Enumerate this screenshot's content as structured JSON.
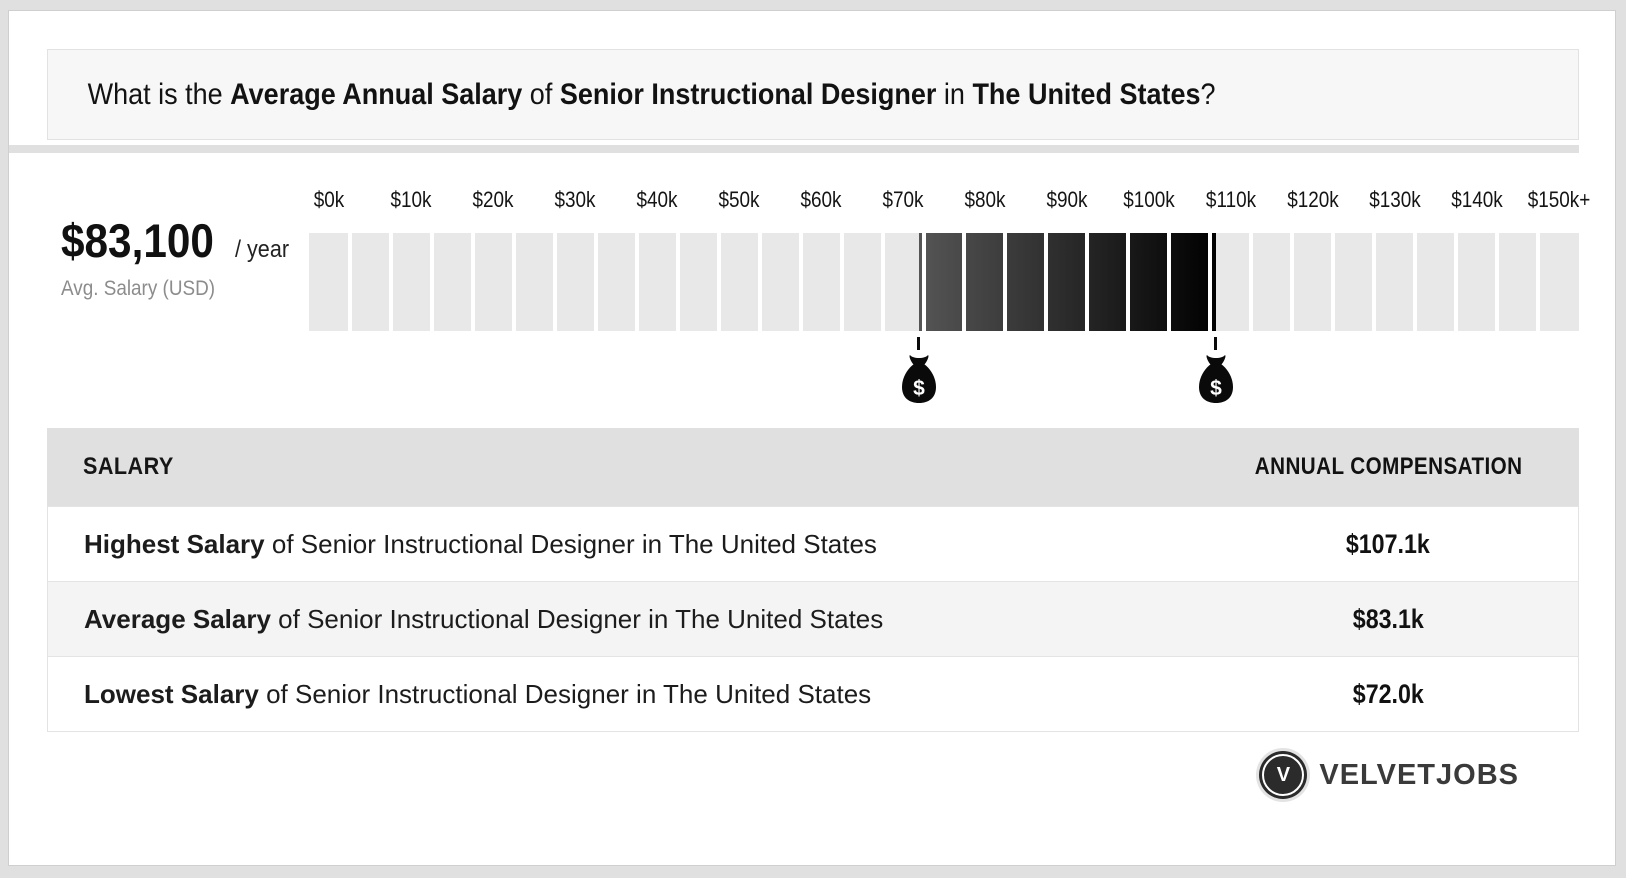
{
  "question": {
    "prefix": "What is the ",
    "bold1": "Average Annual Salary",
    "mid1": " of ",
    "bold2": "Senior Instructional Designer",
    "mid2": " in ",
    "bold3": "The United States",
    "suffix": "?"
  },
  "chart_data": {
    "type": "bar",
    "title": "What is the Average Annual Salary of Senior Instructional Designer in The United States?",
    "avg_display": "$83,100",
    "avg_suffix": "/ year",
    "avg_caption": "Avg. Salary (USD)",
    "axis_ticks": [
      "$0k",
      "$10k",
      "$20k",
      "$30k",
      "$40k",
      "$50k",
      "$60k",
      "$70k",
      "$80k",
      "$90k",
      "$100k",
      "$110k",
      "$120k",
      "$130k",
      "$140k",
      "$150k+"
    ],
    "segments_total": 31,
    "segment_value": 5000,
    "scale_max_position": 150000,
    "lowest": 72000,
    "average": 83100,
    "highest": 107100,
    "lowest_display": "$72.0k",
    "average_display": "$83.1k",
    "highest_display": "$107.1k",
    "marker_symbol": "$",
    "track_color": "#e8e8e8",
    "fill_gradient_start": "#555555",
    "fill_gradient_end": "#000000",
    "grid": false,
    "legend_position": "none"
  },
  "table": {
    "headers": [
      "SALARY",
      "ANNUAL COMPENSATION"
    ],
    "rows": [
      {
        "bold": "Highest Salary",
        "rest": " of Senior Instructional Designer in The United States",
        "value": "$107.1k"
      },
      {
        "bold": "Average Salary",
        "rest": " of Senior Instructional Designer in The United States",
        "value": "$83.1k"
      },
      {
        "bold": "Lowest Salary",
        "rest": " of Senior Instructional Designer in The United States",
        "value": "$72.0k"
      }
    ]
  },
  "footer": {
    "brand": "VELVETJOBS",
    "logo_letter": "V",
    "brand_color": "#3a3a3a"
  }
}
